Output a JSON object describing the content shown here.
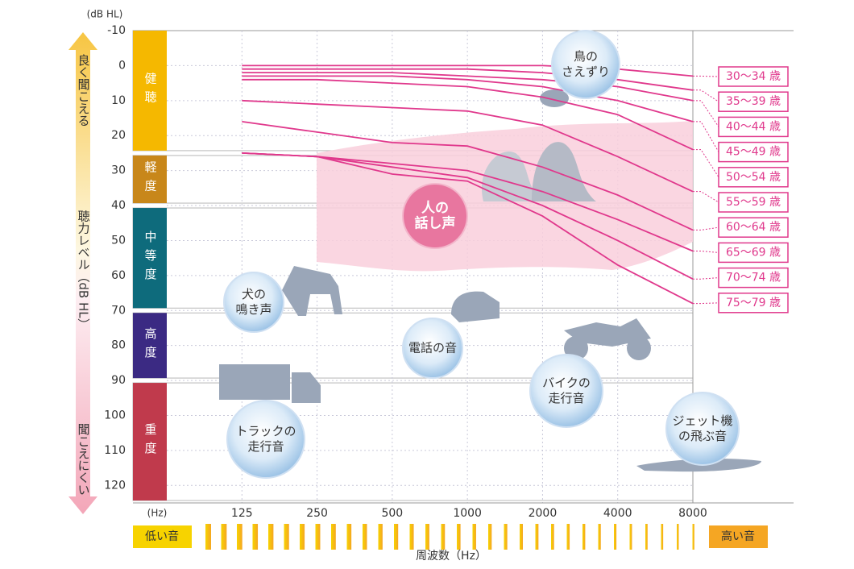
{
  "chart_data": {
    "type": "line",
    "y_unit": "(dB HL)",
    "x_unit": "(Hz)",
    "y_axis_label": "聴力レベル（dB HL）",
    "y_top_label": "良く聞こえる",
    "y_bottom_label": "聞こえにくい",
    "x_axis_label": "周波数（Hz）",
    "x_low_label": "低い音",
    "x_high_label": "高い音",
    "x": [
      125,
      250,
      500,
      1000,
      2000,
      4000,
      8000
    ],
    "xlim": [
      62.5,
      8000
    ],
    "xscale": "log",
    "xticks": [
      125,
      250,
      500,
      1000,
      2000,
      4000,
      8000
    ],
    "ylim": [
      -10,
      125
    ],
    "y_inverted": true,
    "yticks": [
      -10,
      0,
      10,
      20,
      30,
      40,
      50,
      60,
      70,
      80,
      90,
      100,
      110,
      120
    ],
    "grid": true,
    "series": [
      {
        "name": "30〜34 歳",
        "color": "#e0388c",
        "values": [
          0,
          0,
          0,
          0,
          0,
          1,
          3
        ]
      },
      {
        "name": "35〜39 歳",
        "color": "#e0388c",
        "values": [
          1,
          1,
          1,
          1,
          2,
          4,
          7
        ]
      },
      {
        "name": "40〜44 歳",
        "color": "#e0388c",
        "values": [
          2,
          2,
          2,
          3,
          4,
          6,
          10
        ]
      },
      {
        "name": "45〜49 歳",
        "color": "#e0388c",
        "values": [
          3,
          3,
          3,
          4,
          6,
          10,
          16
        ]
      },
      {
        "name": "50〜54 歳",
        "color": "#e0388c",
        "values": [
          4,
          4,
          5,
          6,
          9,
          14,
          24
        ]
      },
      {
        "name": "55〜59 歳",
        "color": "#e0388c",
        "values": [
          10,
          11,
          12,
          13,
          17,
          26,
          36
        ]
      },
      {
        "name": "60〜64 歳",
        "color": "#e0388c",
        "values": [
          16,
          19,
          22,
          23,
          29,
          37,
          47
        ]
      },
      {
        "name": "65〜69 歳",
        "color": "#e0388c",
        "values": [
          25,
          26,
          28,
          30,
          36,
          44,
          53
        ]
      },
      {
        "name": "70〜74 歳",
        "color": "#e0388c",
        "values": [
          25,
          26,
          29,
          32,
          40,
          50,
          61
        ]
      },
      {
        "name": "75〜79 歳",
        "color": "#e0388c",
        "values": [
          25,
          26,
          31,
          33,
          43,
          57,
          68
        ]
      }
    ],
    "bands": [
      {
        "label": "健聴",
        "from": -10,
        "to": 25,
        "color": "#f5b800"
      },
      {
        "label": "軽度",
        "from": 25,
        "to": 40,
        "color": "#c8871a"
      },
      {
        "label": "中等度",
        "from": 40,
        "to": 70,
        "color": "#0e6b7c"
      },
      {
        "label": "高度",
        "from": 70,
        "to": 90,
        "color": "#3b2a83"
      },
      {
        "label": "重度",
        "from": 90,
        "to": 125,
        "color": "#c03a4c"
      }
    ],
    "annotations": [
      {
        "lines": [
          "鳥の",
          "さえずり"
        ]
      },
      {
        "lines": [
          "人の",
          "話し声"
        ]
      },
      {
        "lines": [
          "犬の",
          "鳴き声"
        ]
      },
      {
        "lines": [
          "電話の音"
        ]
      },
      {
        "lines": [
          "バイクの",
          "走行音"
        ]
      },
      {
        "lines": [
          "トラックの",
          "走行音"
        ]
      },
      {
        "lines": [
          "ジェット機",
          "の飛ぶ音"
        ]
      }
    ]
  }
}
